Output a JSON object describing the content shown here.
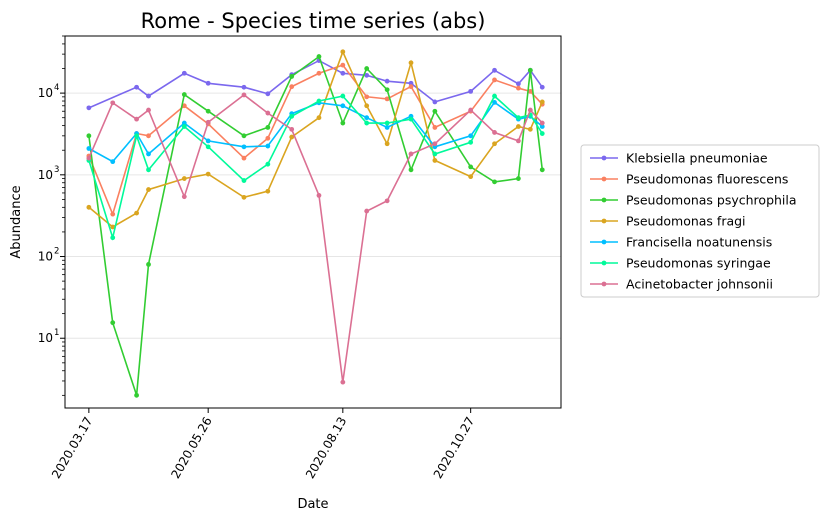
{
  "chart_data": {
    "type": "line",
    "title": "Rome - Species time series (abs)",
    "xlabel": "Date",
    "ylabel": "Abundance",
    "yscale": "log",
    "ylim": [
      1.4,
      50000
    ],
    "xlim": [
      "2020-03-03",
      "2020-12-19"
    ],
    "xticks": [
      {
        "date": "2020-03-17",
        "label": "2020.03.17"
      },
      {
        "date": "2020-05-26",
        "label": "2020.05.26"
      },
      {
        "date": "2020-08-13",
        "label": "2020.08.13"
      },
      {
        "date": "2020-10-27",
        "label": "2020.10.27"
      }
    ],
    "yticks": [
      {
        "value": 10,
        "label": "10"
      },
      {
        "value": 100,
        "label": "10"
      },
      {
        "value": 1000,
        "label": "10"
      },
      {
        "value": 10000,
        "label": "10"
      }
    ],
    "ytick_exponents": [
      "1",
      "2",
      "3",
      "4"
    ],
    "grid": "y-major",
    "legend_position": "right",
    "dates": [
      "2020-03-17",
      "2020-03-31",
      "2020-04-14",
      "2020-04-21",
      "2020-05-12",
      "2020-05-26",
      "2020-06-16",
      "2020-06-30",
      "2020-07-14",
      "2020-07-30",
      "2020-08-13",
      "2020-08-27",
      "2020-09-08",
      "2020-09-22",
      "2020-10-06",
      "2020-10-27",
      "2020-11-10",
      "2020-11-24",
      "2020-12-01",
      "2020-12-08"
    ],
    "series": [
      {
        "name": "Klebsiella pneumoniae",
        "color": "#7b68ee",
        "points": [
          [
            "2020-03-17",
            6600
          ],
          [
            "2020-04-14",
            11800
          ],
          [
            "2020-04-21",
            9200
          ],
          [
            "2020-05-12",
            17500
          ],
          [
            "2020-05-26",
            13200
          ],
          [
            "2020-06-16",
            11800
          ],
          [
            "2020-06-30",
            9800
          ],
          [
            "2020-07-14",
            16800
          ],
          [
            "2020-07-30",
            25000
          ],
          [
            "2020-08-13",
            17500
          ],
          [
            "2020-08-27",
            16500
          ],
          [
            "2020-09-08",
            14000
          ],
          [
            "2020-09-22",
            13200
          ],
          [
            "2020-10-06",
            7800
          ],
          [
            "2020-10-27",
            10500
          ],
          [
            "2020-11-10",
            19000
          ],
          [
            "2020-11-24",
            13000
          ],
          [
            "2020-12-01",
            19000
          ],
          [
            "2020-12-08",
            11800
          ]
        ]
      },
      {
        "name": "Pseudomonas fluorescens",
        "color": "#fa8060",
        "points": [
          [
            "2020-03-17",
            1700
          ],
          [
            "2020-03-31",
            330
          ],
          [
            "2020-04-14",
            3200
          ],
          [
            "2020-04-21",
            3000
          ],
          [
            "2020-05-12",
            7000
          ],
          [
            "2020-05-26",
            4200
          ],
          [
            "2020-06-16",
            1600
          ],
          [
            "2020-06-30",
            2800
          ],
          [
            "2020-07-14",
            12000
          ],
          [
            "2020-07-30",
            17500
          ],
          [
            "2020-08-13",
            22000
          ],
          [
            "2020-08-27",
            9000
          ],
          [
            "2020-09-08",
            8500
          ],
          [
            "2020-09-22",
            12000
          ],
          [
            "2020-10-06",
            3800
          ],
          [
            "2020-10-27",
            6000
          ],
          [
            "2020-11-10",
            14500
          ],
          [
            "2020-11-24",
            11500
          ],
          [
            "2020-12-01",
            10500
          ],
          [
            "2020-12-08",
            7300
          ]
        ]
      },
      {
        "name": "Pseudomonas psychrophila",
        "color": "#32cd32",
        "points": [
          [
            "2020-03-17",
            3000
          ],
          [
            "2020-03-31",
            15.5
          ],
          [
            "2020-04-14",
            2
          ],
          [
            "2020-04-21",
            80
          ],
          [
            "2020-05-12",
            9600
          ],
          [
            "2020-05-26",
            6000
          ],
          [
            "2020-06-16",
            3000
          ],
          [
            "2020-06-30",
            3800
          ],
          [
            "2020-07-14",
            16000
          ],
          [
            "2020-07-30",
            28000
          ],
          [
            "2020-08-13",
            4300
          ],
          [
            "2020-08-27",
            20000
          ],
          [
            "2020-09-08",
            11000
          ],
          [
            "2020-09-22",
            1150
          ],
          [
            "2020-10-06",
            6000
          ],
          [
            "2020-10-27",
            1250
          ],
          [
            "2020-11-10",
            820
          ],
          [
            "2020-11-24",
            900
          ],
          [
            "2020-12-01",
            19000
          ],
          [
            "2020-12-08",
            1150
          ]
        ]
      },
      {
        "name": "Pseudomonas fragi",
        "color": "#daa520",
        "points": [
          [
            "2020-03-17",
            400
          ],
          [
            "2020-03-31",
            230
          ],
          [
            "2020-04-14",
            340
          ],
          [
            "2020-04-21",
            660
          ],
          [
            "2020-05-12",
            900
          ],
          [
            "2020-05-26",
            1020
          ],
          [
            "2020-06-16",
            530
          ],
          [
            "2020-06-30",
            630
          ],
          [
            "2020-07-14",
            2900
          ],
          [
            "2020-07-30",
            5000
          ],
          [
            "2020-08-13",
            32000
          ],
          [
            "2020-08-27",
            7000
          ],
          [
            "2020-09-08",
            2400
          ],
          [
            "2020-09-22",
            23500
          ],
          [
            "2020-10-06",
            1500
          ],
          [
            "2020-10-27",
            950
          ],
          [
            "2020-11-10",
            2400
          ],
          [
            "2020-11-24",
            3900
          ],
          [
            "2020-12-01",
            3600
          ],
          [
            "2020-12-08",
            7800
          ]
        ]
      },
      {
        "name": "Francisella noatunensis",
        "color": "#00bfff",
        "points": [
          [
            "2020-03-17",
            2100
          ],
          [
            "2020-03-31",
            1450
          ],
          [
            "2020-04-14",
            3200
          ],
          [
            "2020-04-21",
            1800
          ],
          [
            "2020-05-12",
            4300
          ],
          [
            "2020-05-26",
            2600
          ],
          [
            "2020-06-16",
            2200
          ],
          [
            "2020-06-30",
            2250
          ],
          [
            "2020-07-14",
            5600
          ],
          [
            "2020-07-30",
            7600
          ],
          [
            "2020-08-13",
            7000
          ],
          [
            "2020-08-27",
            5000
          ],
          [
            "2020-09-08",
            3800
          ],
          [
            "2020-09-22",
            5200
          ],
          [
            "2020-10-06",
            2200
          ],
          [
            "2020-10-27",
            3000
          ],
          [
            "2020-11-10",
            7700
          ],
          [
            "2020-11-24",
            4800
          ],
          [
            "2020-12-01",
            5200
          ],
          [
            "2020-12-08",
            3900
          ]
        ]
      },
      {
        "name": "Pseudomonas syringae",
        "color": "#00fa9a",
        "points": [
          [
            "2020-03-17",
            1500
          ],
          [
            "2020-03-31",
            170
          ],
          [
            "2020-04-14",
            3000
          ],
          [
            "2020-04-21",
            1150
          ],
          [
            "2020-05-12",
            3900
          ],
          [
            "2020-05-26",
            2200
          ],
          [
            "2020-06-16",
            850
          ],
          [
            "2020-06-30",
            1350
          ],
          [
            "2020-07-14",
            5200
          ],
          [
            "2020-07-30",
            8000
          ],
          [
            "2020-08-13",
            9200
          ],
          [
            "2020-08-27",
            4300
          ],
          [
            "2020-09-08",
            4300
          ],
          [
            "2020-09-22",
            4800
          ],
          [
            "2020-10-06",
            1800
          ],
          [
            "2020-10-27",
            2500
          ],
          [
            "2020-11-10",
            9200
          ],
          [
            "2020-11-24",
            5000
          ],
          [
            "2020-12-01",
            5400
          ],
          [
            "2020-12-08",
            3200
          ]
        ]
      },
      {
        "name": "Acinetobacter johnsonii",
        "color": "#db7093",
        "points": [
          [
            "2020-03-17",
            1600
          ],
          [
            "2020-03-31",
            7600
          ],
          [
            "2020-04-14",
            4800
          ],
          [
            "2020-04-21",
            6200
          ],
          [
            "2020-05-12",
            540
          ],
          [
            "2020-05-26",
            4400
          ],
          [
            "2020-06-16",
            9500
          ],
          [
            "2020-06-30",
            5700
          ],
          [
            "2020-07-14",
            3600
          ],
          [
            "2020-07-30",
            560
          ],
          [
            "2020-08-13",
            2.9
          ],
          [
            "2020-08-27",
            360
          ],
          [
            "2020-09-08",
            480
          ],
          [
            "2020-09-22",
            1800
          ],
          [
            "2020-10-06",
            2400
          ],
          [
            "2020-10-27",
            6200
          ],
          [
            "2020-11-10",
            3300
          ],
          [
            "2020-11-24",
            2600
          ],
          [
            "2020-12-01",
            6200
          ],
          [
            "2020-12-08",
            4300
          ]
        ]
      }
    ]
  }
}
